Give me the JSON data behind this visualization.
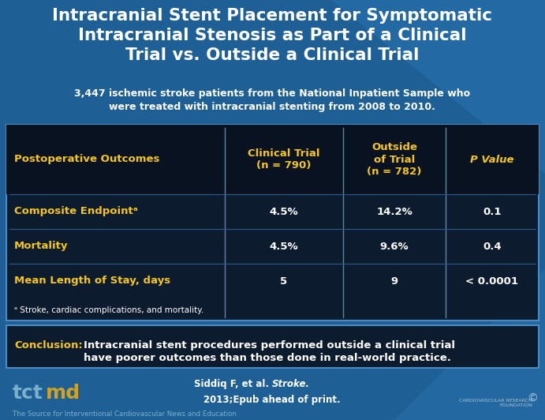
{
  "title_line1": "Intracranial Stent Placement for Symptomatic",
  "title_line2": "Intracranial Stenosis as Part of a Clinical",
  "title_line3": "Trial vs. Outside a Clinical Trial",
  "subtitle": "3,447 ischemic stroke patients from the National Inpatient Sample who\nwere treated with intracranial stenting from 2008 to 2010.",
  "col_headers": [
    "Postoperative Outcomes",
    "Clinical Trial\n(n = 790)",
    "Outside\nof Trial\n(n = 782)",
    "P Value"
  ],
  "rows": [
    [
      "Composite Endpointᵃ",
      "4.5%",
      "14.2%",
      "0.1"
    ],
    [
      "Mortality",
      "4.5%",
      "9.6%",
      "0.4"
    ],
    [
      "Mean Length of Stay, days",
      "5",
      "9",
      "< 0.0001"
    ]
  ],
  "footnote": "ᵃ Stroke, cardiac complications, and mortality.",
  "conclusion_label": "Conclusion:",
  "conclusion_text": "Intracranial stent procedures performed outside a clinical trial\nhave poorer outcomes than those done in real-world practice.",
  "citation_line1": "Siddiq F, et al. Stroke.",
  "citation_line2": "2013;Epub ahead of print.",
  "footer_text": "The Source for Interventional Cardiovascular News and Education",
  "bg_blue": "#1e5f96",
  "bg_dark": "#0a1628",
  "table_bg": "#0d1b2e",
  "title_color": "#ffffff",
  "subtitle_color": "#ffffff",
  "gold": "#f5c518",
  "white": "#ffffff",
  "tct_blue": "#7ab0cc",
  "tct_gold": "#d4a020",
  "border_blue": "#4a8abf"
}
